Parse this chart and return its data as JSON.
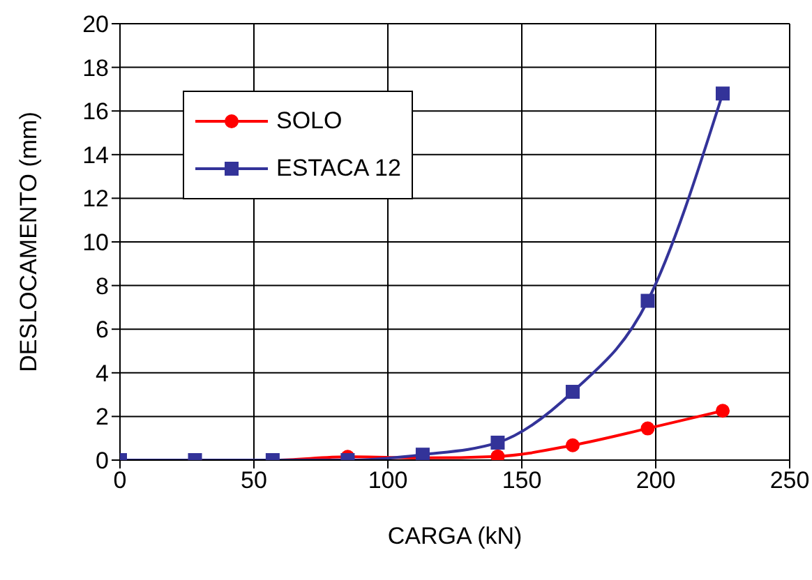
{
  "chart_data": {
    "type": "line",
    "xlabel": "CARGA (kN)",
    "ylabel": "DESLOCAMENTO (mm)",
    "x": [
      0,
      28,
      57,
      85,
      113,
      141,
      169,
      197,
      225
    ],
    "series": [
      {
        "name": "SOLO",
        "color": "#ff0000",
        "marker": "circle",
        "values": [
          0,
          0,
          0,
          0.15,
          0.1,
          0.17,
          0.68,
          1.45,
          2.26
        ]
      },
      {
        "name": "ESTACA 12",
        "color": "#333399",
        "marker": "square",
        "values": [
          0,
          0,
          0,
          0,
          0.25,
          0.8,
          3.13,
          7.3,
          16.8
        ]
      }
    ],
    "xlim": [
      0,
      250
    ],
    "xticks": [
      0,
      50,
      100,
      150,
      200,
      250
    ],
    "ylim": [
      0,
      20
    ],
    "yticks": [
      0,
      2,
      4,
      6,
      8,
      10,
      12,
      14,
      16,
      18,
      20
    ],
    "grid": true,
    "legend": "top left",
    "line_style": "solid"
  }
}
